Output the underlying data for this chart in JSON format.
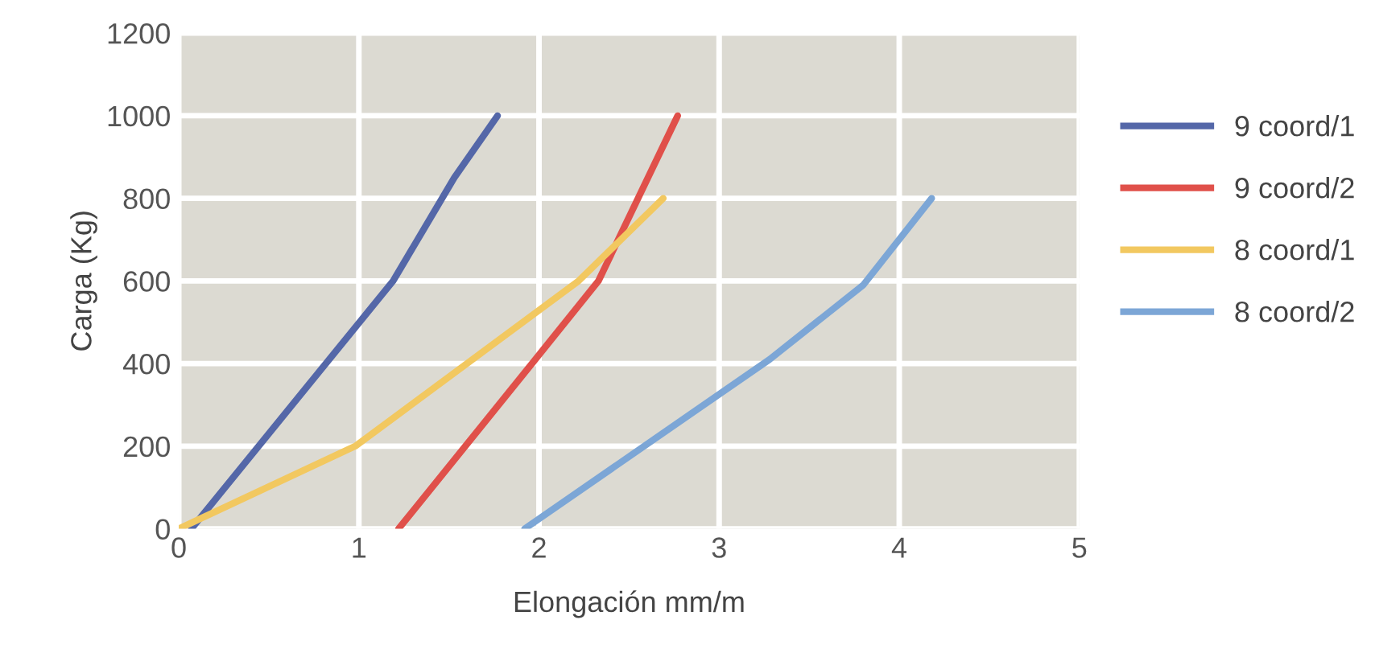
{
  "chart_data": {
    "type": "line",
    "xlabel": "Elongación mm/m",
    "ylabel": "Carga (Kg)",
    "xlim": [
      0,
      5
    ],
    "xticks": [
      0,
      1,
      2,
      3,
      4,
      5
    ],
    "ylim": [
      0,
      1200
    ],
    "yticks": [
      0,
      200,
      400,
      600,
      800,
      1000,
      1200
    ],
    "grid": true,
    "legend": "right",
    "marker": "none",
    "line_style": "solid",
    "series": [
      {
        "name": "9 coord/1",
        "color": "#5467a8",
        "x": [
          0.07,
          1.19,
          1.53,
          1.77
        ],
        "values": [
          0,
          600,
          850,
          1000
        ]
      },
      {
        "name": "9 coord/2",
        "color": "#e0504a",
        "x": [
          1.22,
          1.98,
          2.33,
          2.77
        ],
        "values": [
          0,
          410,
          600,
          1000
        ]
      },
      {
        "name": "8 coord/1",
        "color": "#f2c860",
        "x": [
          0,
          0.98,
          2.22,
          2.69
        ],
        "values": [
          0,
          200,
          600,
          800
        ]
      },
      {
        "name": "8 coord/2",
        "color": "#7ca6d6",
        "x": [
          1.92,
          3.28,
          3.8,
          4.18
        ],
        "values": [
          0,
          410,
          590,
          800
        ]
      }
    ]
  }
}
